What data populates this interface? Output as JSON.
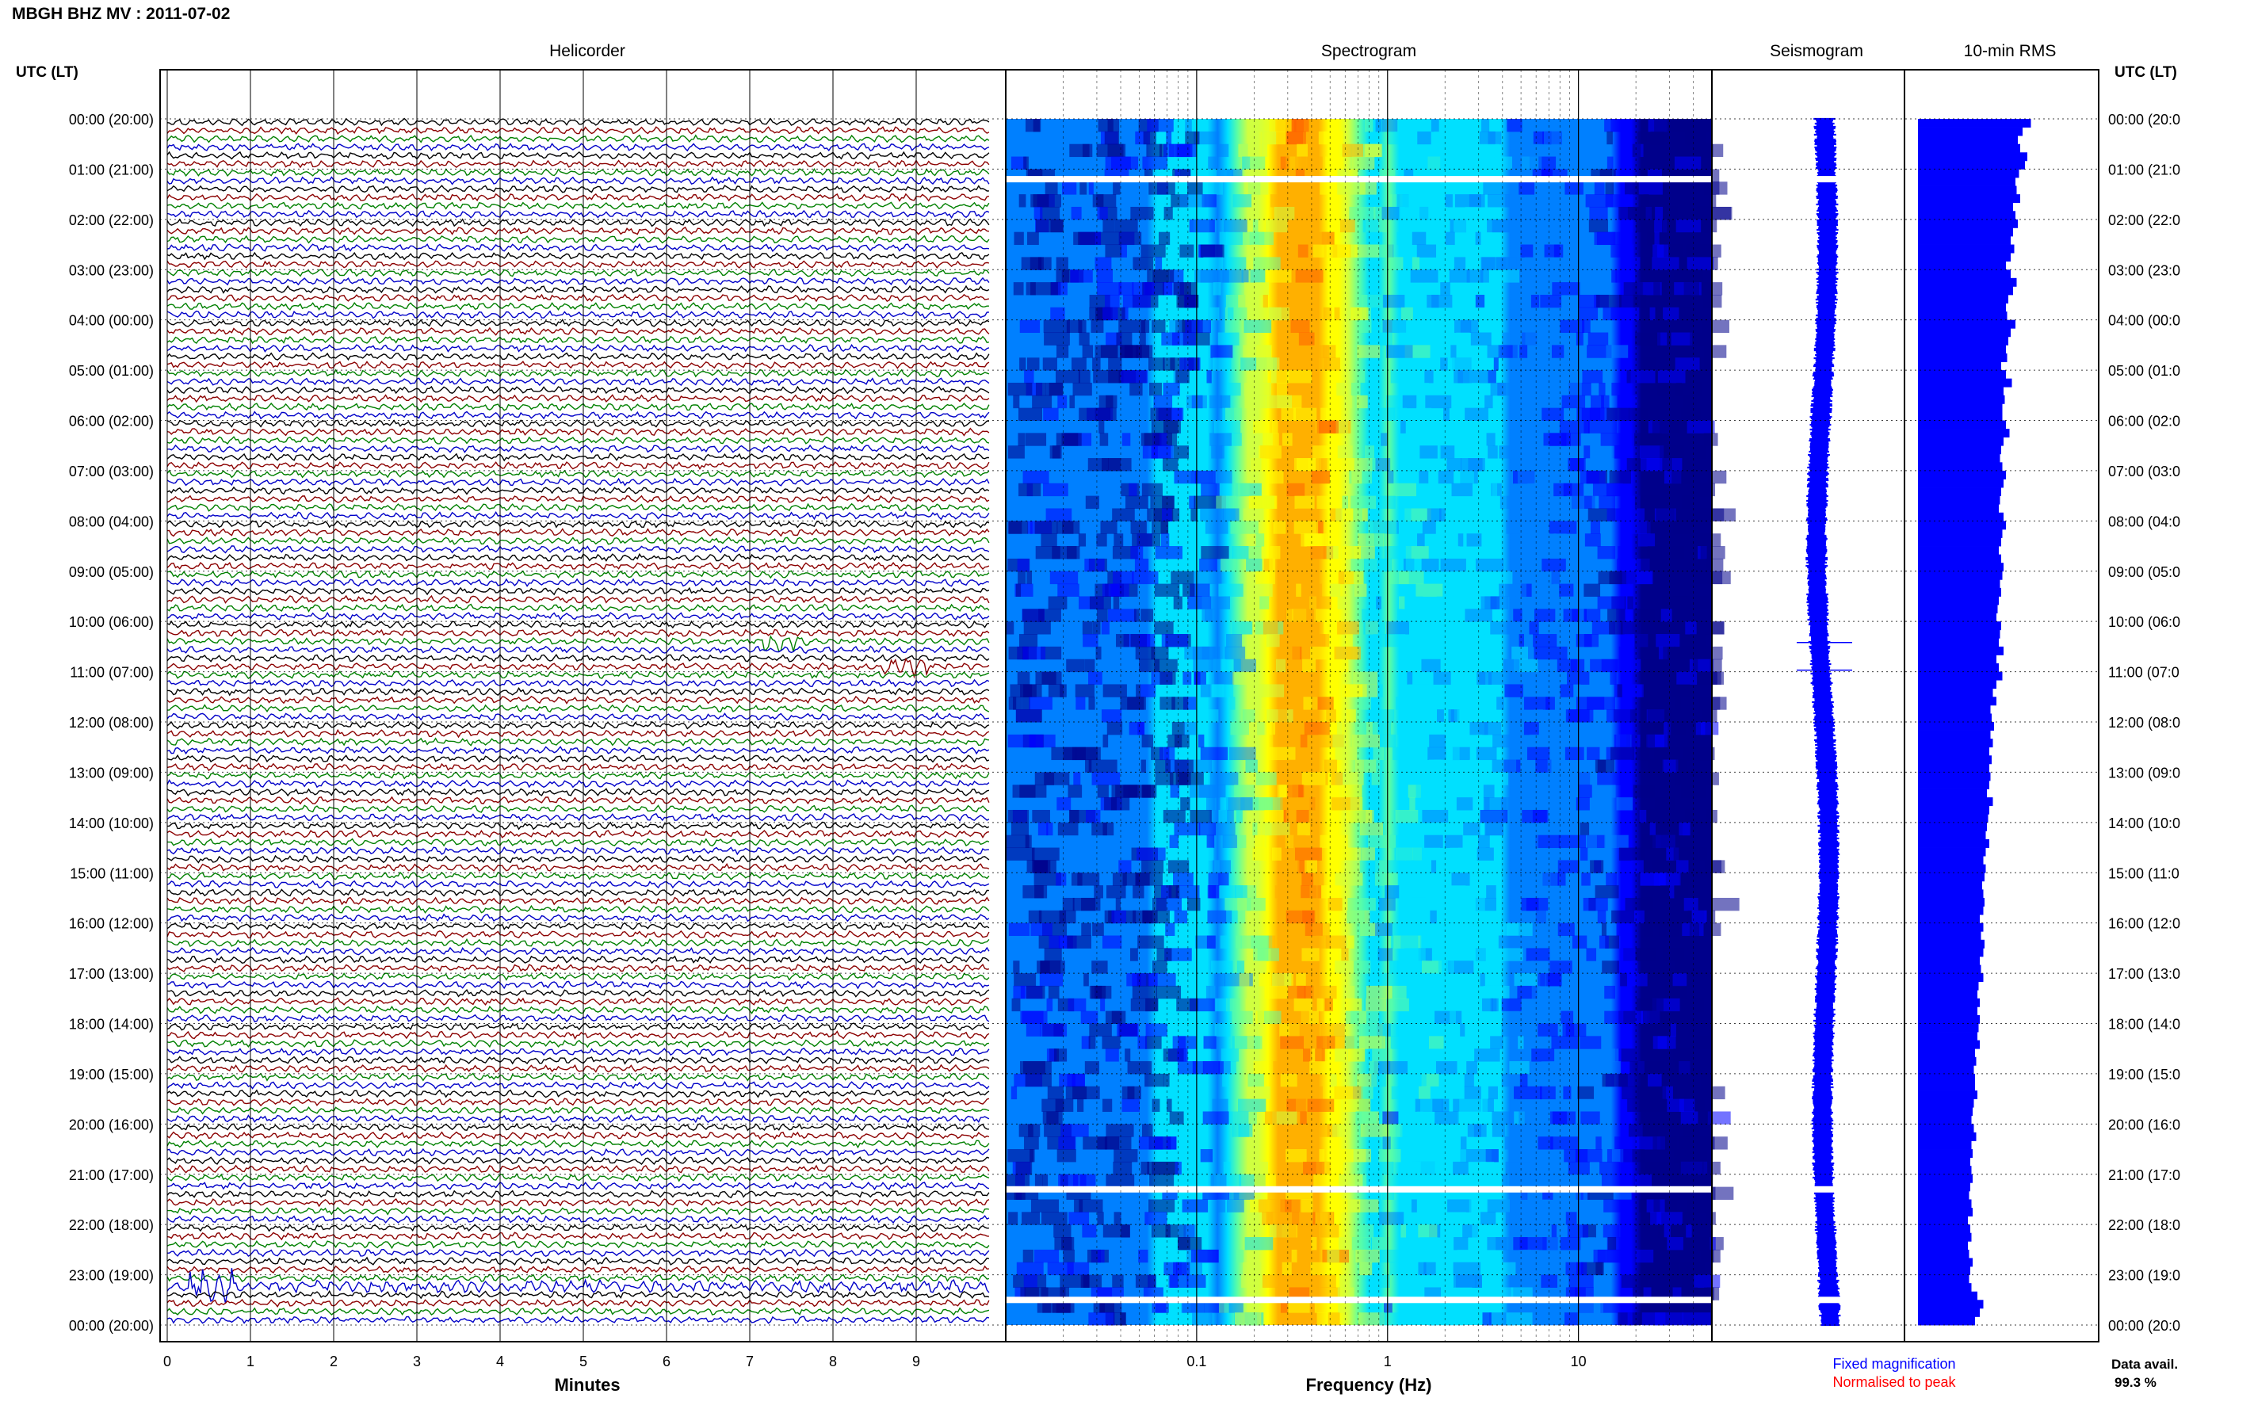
{
  "header": {
    "station_title": "MBGH BHZ MV : 2011-07-02",
    "left_axis_label": "UTC (LT)",
    "right_axis_label": "UTC (LT)"
  },
  "panels": {
    "helicorder": {
      "title": "Helicorder",
      "xlabel": "Minutes"
    },
    "spectrogram": {
      "title": "Spectrogram",
      "xlabel": "Frequency (Hz)"
    },
    "seismogram": {
      "title": "Seismogram"
    },
    "rms": {
      "title": "10-min RMS"
    }
  },
  "legend": {
    "fixed": "Fixed magnification",
    "normalised": "Normalised to peak",
    "fixed_color": "#0000ff",
    "normalised_color": "#ff0000"
  },
  "data_availability": {
    "label": "Data avail.",
    "value": "99.3 %"
  },
  "chart_data": [
    {
      "type": "line",
      "name": "Helicorder",
      "x_ticks": [
        "0",
        "1",
        "2",
        "3",
        "4",
        "5",
        "6",
        "7",
        "8",
        "9"
      ],
      "xlim": [
        0,
        10
      ],
      "y_ticks_left": [
        "00:00 (20:00)",
        "01:00 (21:00)",
        "02:00 (22:00)",
        "03:00 (23:00)",
        "04:00 (00:00)",
        "05:00 (01:00)",
        "06:00 (02:00)",
        "07:00 (03:00)",
        "08:00 (04:00)",
        "09:00 (05:00)",
        "10:00 (06:00)",
        "11:00 (07:00)",
        "12:00 (08:00)",
        "13:00 (09:00)",
        "14:00 (10:00)",
        "15:00 (11:00)",
        "16:00 (12:00)",
        "17:00 (13:00)",
        "18:00 (14:00)",
        "19:00 (15:00)",
        "20:00 (16:00)",
        "21:00 (17:00)",
        "22:00 (18:00)",
        "23:00 (19:00)",
        "00:00 (20:00)"
      ],
      "y_ticks_right": [
        "00:00 (20:0",
        "01:00 (21:0",
        "02:00 (22:0",
        "03:00 (23:0",
        "04:00 (00:0",
        "05:00 (01:0",
        "06:00 (02:0",
        "07:00 (03:0",
        "08:00 (04:0",
        "09:00 (05:0",
        "10:00 (06:0",
        "11:00 (07:0",
        "12:00 (08:0",
        "13:00 (09:0",
        "14:00 (10:0",
        "15:00 (11:0",
        "16:00 (12:0",
        "17:00 (13:0",
        "18:00 (14:0",
        "19:00 (15:0",
        "20:00 (16:0",
        "21:00 (17:0",
        "22:00 (18:0",
        "23:00 (19:0",
        "00:00 (20:0"
      ],
      "lines_per_hour": 6,
      "trace_colors": [
        "#000000",
        "#8b0000",
        "#008000",
        "#0000c8"
      ],
      "events": [
        {
          "hour": 10.3,
          "minute": 7.4,
          "color": "#0000c8"
        },
        {
          "hour": 10.83,
          "minute": 8.9,
          "color": "#8b0000"
        },
        {
          "hour": 23.17,
          "minute": 0.5,
          "color": "#000000"
        }
      ]
    },
    {
      "type": "heatmap",
      "name": "Spectrogram",
      "xscale": "log",
      "xlim": [
        0.01,
        50
      ],
      "x_ticks": [
        "0.1",
        "1",
        "10"
      ],
      "x_tick_values": [
        0.1,
        1,
        10
      ],
      "peak_frequency_hz": 0.35,
      "colormap": [
        "#00008b",
        "#0000ff",
        "#0080ff",
        "#00e0ff",
        "#60ffa0",
        "#d0ff40",
        "#ffff00",
        "#ffb000",
        "#ff6000"
      ],
      "gaps_hours": [
        1.2,
        21.3,
        23.5
      ]
    },
    {
      "type": "line",
      "name": "Seismogram",
      "spikes_hours": [
        10.42,
        10.97
      ],
      "gaps_hours": [
        1.2,
        21.3,
        23.5
      ]
    },
    {
      "type": "bar",
      "name": "10-min RMS",
      "values_relative": [
        0.95,
        0.88,
        0.84,
        0.86,
        0.92,
        0.9,
        0.85,
        0.82,
        0.83,
        0.86,
        0.8,
        0.82,
        0.84,
        0.8,
        0.78,
        0.81,
        0.78,
        0.74,
        0.78,
        0.83,
        0.8,
        0.76,
        0.74,
        0.75,
        0.82,
        0.78,
        0.76,
        0.74,
        0.75,
        0.7,
        0.74,
        0.79,
        0.72,
        0.73,
        0.71,
        0.71,
        0.74,
        0.77,
        0.72,
        0.7,
        0.69,
        0.71,
        0.74,
        0.72,
        0.7,
        0.69,
        0.68,
        0.72,
        0.74,
        0.71,
        0.7,
        0.68,
        0.7,
        0.72,
        0.71,
        0.69,
        0.7,
        0.68,
        0.67,
        0.66,
        0.7,
        0.69,
        0.68,
        0.72,
        0.66,
        0.68,
        0.71,
        0.66,
        0.63,
        0.66,
        0.61,
        0.62,
        0.64,
        0.61,
        0.63,
        0.6,
        0.62,
        0.6,
        0.61,
        0.6,
        0.58,
        0.63,
        0.6,
        0.59,
        0.58,
        0.57,
        0.6,
        0.57,
        0.55,
        0.57,
        0.56,
        0.54,
        0.55,
        0.56,
        0.55,
        0.52,
        0.55,
        0.53,
        0.56,
        0.55,
        0.52,
        0.53,
        0.55,
        0.51,
        0.5,
        0.52,
        0.5,
        0.52,
        0.51,
        0.5,
        0.52,
        0.48,
        0.49,
        0.47,
        0.48,
        0.48,
        0.5,
        0.47,
        0.46,
        0.45,
        0.47,
        0.49,
        0.45,
        0.46,
        0.44,
        0.45,
        0.46,
        0.44,
        0.43,
        0.45,
        0.46,
        0.42,
        0.44,
        0.45,
        0.42,
        0.43,
        0.46,
        0.44,
        0.43,
        0.45,
        0.5,
        0.55,
        0.52,
        0.48
      ],
      "color": "#0000ff"
    }
  ]
}
